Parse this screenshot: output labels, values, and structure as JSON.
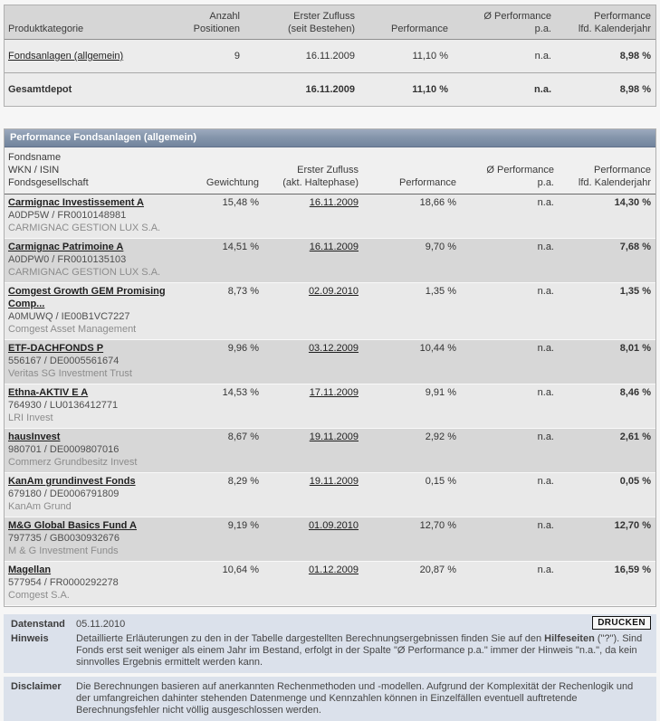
{
  "summary_table": {
    "headers": {
      "category": "Produktkategorie",
      "positions": "Anzahl\nPositionen",
      "inflow": "Erster Zufluss\n(seit Bestehen)",
      "performance": "Performance",
      "performance_pa": "Ø Performance\np.a.",
      "performance_ytd": "Performance\nlfd. Kalenderjahr"
    },
    "rows": [
      {
        "category": "Fondsanlagen (allgemein)",
        "positions": "9",
        "inflow": "16.11.2009",
        "performance": "11,10 %",
        "performance_pa": "n.a.",
        "performance_ytd": "8,98 %"
      },
      {
        "category": "Gesamtdepot",
        "positions": "",
        "inflow": "16.11.2009",
        "performance": "11,10 %",
        "performance_pa": "n.a.",
        "performance_ytd": "8,98 %"
      }
    ]
  },
  "detail_table": {
    "title": "Performance Fondsanlagen (allgemein)",
    "headers": {
      "fund": "Fondsname\nWKN / ISIN\nFondsgesellschaft",
      "weight": "Gewichtung",
      "inflow": "Erster Zufluss\n(akt. Haltephase)",
      "performance": "Performance",
      "performance_pa": "Ø Performance\np.a.",
      "performance_ytd": "Performance\nlfd. Kalenderjahr"
    },
    "rows": [
      {
        "name": "Carmignac Investissement A",
        "wkn_isin": "A0DP5W / FR0010148981",
        "company": "CARMIGNAC GESTION LUX S.A.",
        "weight": "15,48 %",
        "inflow": "16.11.2009",
        "performance": "18,66 %",
        "performance_pa": "n.a.",
        "performance_ytd": "14,30 %"
      },
      {
        "name": "Carmignac Patrimoine A",
        "wkn_isin": "A0DPW0 / FR0010135103",
        "company": "CARMIGNAC GESTION LUX S.A.",
        "weight": "14,51 %",
        "inflow": "16.11.2009",
        "performance": "9,70 %",
        "performance_pa": "n.a.",
        "performance_ytd": "7,68 %"
      },
      {
        "name": "Comgest Growth GEM Promising Comp...",
        "wkn_isin": "A0MUWQ / IE00B1VC7227",
        "company": "Comgest Asset Management",
        "weight": "8,73 %",
        "inflow": "02.09.2010",
        "performance": "1,35 %",
        "performance_pa": "n.a.",
        "performance_ytd": "1,35 %"
      },
      {
        "name": "ETF-DACHFONDS P",
        "wkn_isin": "556167 / DE0005561674",
        "company": "Veritas SG Investment Trust",
        "weight": "9,96 %",
        "inflow": "03.12.2009",
        "performance": "10,44 %",
        "performance_pa": "n.a.",
        "performance_ytd": "8,01 %"
      },
      {
        "name": "Ethna-AKTIV E A",
        "wkn_isin": "764930 / LU0136412771",
        "company": "LRI Invest",
        "weight": "14,53 %",
        "inflow": "17.11.2009",
        "performance": "9,91 %",
        "performance_pa": "n.a.",
        "performance_ytd": "8,46 %"
      },
      {
        "name": "hausInvest",
        "wkn_isin": "980701 / DE0009807016",
        "company": "Commerz Grundbesitz Invest",
        "weight": "8,67 %",
        "inflow": "19.11.2009",
        "performance": "2,92 %",
        "performance_pa": "n.a.",
        "performance_ytd": "2,61 %"
      },
      {
        "name": "KanAm grundinvest Fonds",
        "wkn_isin": "679180 / DE0006791809",
        "company": "KanAm Grund",
        "weight": "8,29 %",
        "inflow": "19.11.2009",
        "performance": "0,15 %",
        "performance_pa": "n.a.",
        "performance_ytd": "0,05 %"
      },
      {
        "name": "M&G Global Basics Fund A",
        "wkn_isin": "797735 / GB0030932676",
        "company": "M & G Investment Funds",
        "weight": "9,19 %",
        "inflow": "01.09.2010",
        "performance": "12,70 %",
        "performance_pa": "n.a.",
        "performance_ytd": "12,70 %"
      },
      {
        "name": "Magellan",
        "wkn_isin": "577954 / FR0000292278",
        "company": "Comgest S.A.",
        "weight": "10,64 %",
        "inflow": "01.12.2009",
        "performance": "20,87 %",
        "performance_pa": "n.a.",
        "performance_ytd": "16,59 %"
      }
    ]
  },
  "footer": {
    "datenstand_label": "Datenstand",
    "datenstand_value": "05.11.2010",
    "drucken_label": "DRUCKEN",
    "hinweis_label": "Hinweis",
    "hinweis_text_1": "Detaillierte Erläuterungen zu den in der Tabelle dargestellten Berechnungsergebnissen finden Sie auf den ",
    "hinweis_bold": "Hilfeseiten",
    "hinweis_text_2": " (\"?\"). Sind Fonds erst seit weniger als einem Jahr im Bestand, erfolgt in der Spalte \"Ø Performance p.a.\" immer der Hinweis \"n.a.\", da kein sinnvolles Ergebnis ermittelt werden kann.",
    "disclaimer_label": "Disclaimer",
    "disclaimer_text": "Die Berechnungen basieren auf anerkannten Rechenmethoden und -modellen. Aufgrund der Komplexität der Rechenlogik und der umfangreichen dahinter stehenden Datenmenge und Kennzahlen können in Einzelfällen eventuell auftretende Berechnungsfehler nicht völlig ausgeschlossen werden."
  }
}
